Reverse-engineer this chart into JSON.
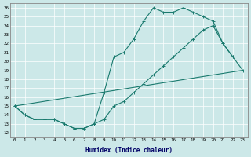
{
  "xlabel": "Humidex (Indice chaleur)",
  "xlim": [
    -0.5,
    23.5
  ],
  "ylim": [
    11.5,
    26.5
  ],
  "xticks": [
    0,
    1,
    2,
    3,
    4,
    5,
    6,
    7,
    8,
    9,
    10,
    11,
    12,
    13,
    14,
    15,
    16,
    17,
    18,
    19,
    20,
    21,
    22,
    23
  ],
  "yticks": [
    12,
    13,
    14,
    15,
    16,
    17,
    18,
    19,
    20,
    21,
    22,
    23,
    24,
    25,
    26
  ],
  "bg_color": "#cce8e8",
  "line_color": "#1a7a6e",
  "line1_x": [
    0,
    1,
    2,
    3,
    4,
    5,
    6,
    7,
    8,
    9,
    10,
    11,
    12,
    13,
    14,
    15,
    16,
    17,
    18,
    19,
    20,
    21,
    22
  ],
  "line1_y": [
    15,
    14,
    13.5,
    13.5,
    13.5,
    13,
    12.5,
    12.5,
    13,
    16.5,
    20.5,
    21,
    22.5,
    24.5,
    26,
    25.5,
    25.5,
    26,
    25.5,
    25,
    24.5,
    22,
    20.5
  ],
  "line2_x": [
    0,
    1,
    2,
    3,
    4,
    5,
    6,
    7,
    8,
    9,
    10,
    11,
    12,
    13,
    14,
    15,
    16,
    17,
    18,
    19,
    20,
    21,
    22,
    23
  ],
  "line2_y": [
    15,
    14,
    13.5,
    13.5,
    13.5,
    13,
    12.5,
    12.5,
    13,
    13.5,
    15,
    15.5,
    16.5,
    17.5,
    18.5,
    19.5,
    20.5,
    21.5,
    22.5,
    23.5,
    24,
    22,
    20.5,
    19
  ],
  "line3_x": [
    0,
    23
  ],
  "line3_y": [
    15,
    19
  ],
  "figsize": [
    3.2,
    2.0
  ],
  "dpi": 100
}
